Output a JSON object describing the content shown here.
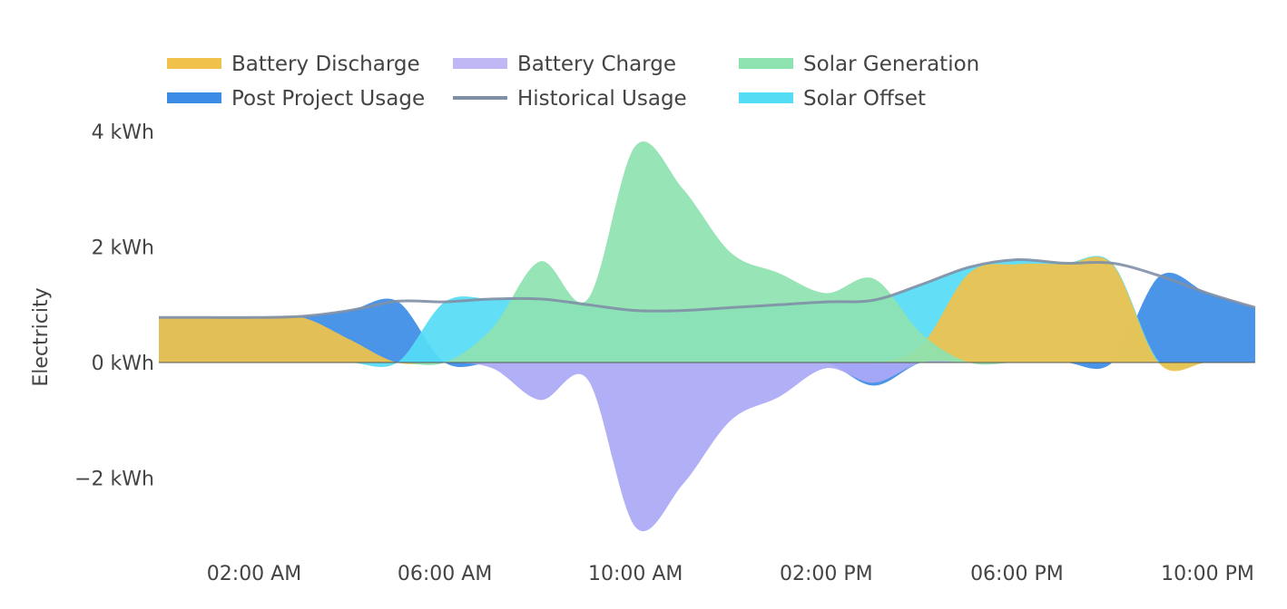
{
  "chart_data": {
    "type": "area",
    "ylabel": "Electricity",
    "x_unit": "hour of day",
    "xlim": [
      0,
      23
    ],
    "ylim": [
      -3.1,
      4.2
    ],
    "y_ticks": [
      {
        "value": 4,
        "label": "4 kWh"
      },
      {
        "value": 2,
        "label": "2 kWh"
      },
      {
        "value": 0,
        "label": "0 kWh"
      },
      {
        "value": -2,
        "label": "−2 kWh"
      }
    ],
    "x_ticks": [
      {
        "value": 2,
        "label": "02:00 AM"
      },
      {
        "value": 6,
        "label": "06:00 AM"
      },
      {
        "value": 10,
        "label": "10:00 AM"
      },
      {
        "value": 14,
        "label": "02:00 PM"
      },
      {
        "value": 18,
        "label": "06:00 PM"
      },
      {
        "value": 22,
        "label": "10:00 PM"
      }
    ],
    "x": [
      0,
      1,
      2,
      3,
      4,
      5,
      6,
      7,
      8,
      9,
      10,
      11,
      12,
      13,
      14,
      15,
      16,
      17,
      18,
      19,
      20,
      21,
      22,
      23
    ],
    "series": [
      {
        "name": "Post Project Usage",
        "color": "#3c8ce6",
        "kind": "area",
        "order": 1,
        "values": [
          0.78,
          0.78,
          0.78,
          0.8,
          0.9,
          1.06,
          0.0,
          0.0,
          0.0,
          0.0,
          0.0,
          0.0,
          0.0,
          0.0,
          0.0,
          -0.4,
          0.0,
          0.0,
          0.0,
          0.0,
          0.0,
          1.5,
          1.2,
          0.95
        ]
      },
      {
        "name": "Solar Offset",
        "color": "#55dcf5",
        "kind": "area",
        "order": 2,
        "values": [
          0.0,
          0.0,
          0.0,
          0.0,
          0.0,
          0.0,
          1.05,
          1.1,
          1.1,
          1.0,
          0.9,
          0.9,
          0.95,
          1.0,
          1.05,
          1.08,
          1.35,
          1.65,
          1.78,
          1.72,
          1.72,
          0.0,
          0.0,
          0.0
        ]
      },
      {
        "name": "Battery Discharge",
        "color": "#f0c24b",
        "kind": "area",
        "order": 3,
        "values": [
          0.78,
          0.78,
          0.78,
          0.78,
          0.4,
          0.0,
          0.0,
          0.0,
          0.0,
          0.0,
          0.0,
          0.0,
          0.0,
          0.0,
          0.0,
          0.0,
          0.3,
          1.55,
          1.7,
          1.7,
          1.7,
          -0.03,
          0.0,
          0.0
        ]
      },
      {
        "name": "Solar Generation",
        "color": "#8ee2b0",
        "kind": "area",
        "order": 4,
        "values": [
          0.0,
          0.0,
          0.0,
          0.0,
          0.0,
          0.0,
          0.0,
          0.6,
          1.75,
          1.1,
          3.75,
          3.0,
          1.9,
          1.55,
          1.2,
          1.45,
          0.5,
          0.0,
          0.0,
          0.0,
          0.0,
          0.0,
          0.0,
          0.0
        ]
      },
      {
        "name": "Battery Charge",
        "color": "#aaa8f5",
        "kind": "area",
        "order": 5,
        "values": [
          0.0,
          0.0,
          0.0,
          0.0,
          0.0,
          0.0,
          0.0,
          -0.1,
          -0.65,
          -0.3,
          -2.85,
          -2.1,
          -1.0,
          -0.6,
          -0.1,
          -0.35,
          0.0,
          0.0,
          0.0,
          0.0,
          0.0,
          0.0,
          0.0,
          0.0
        ]
      },
      {
        "name": "Historical Usage",
        "color": "#7f8fa6",
        "kind": "line",
        "order": 6,
        "values": [
          0.78,
          0.78,
          0.78,
          0.8,
          0.9,
          1.06,
          1.05,
          1.1,
          1.1,
          1.0,
          0.9,
          0.9,
          0.95,
          1.0,
          1.05,
          1.08,
          1.35,
          1.65,
          1.78,
          1.72,
          1.72,
          1.5,
          1.2,
          0.95
        ]
      }
    ],
    "legend": {
      "position": "top-left",
      "items": [
        {
          "label": "Battery Discharge",
          "color": "#f0c24b",
          "kind": "area"
        },
        {
          "label": "Battery Charge",
          "color": "#c0b8f5",
          "kind": "area"
        },
        {
          "label": "Solar Generation",
          "color": "#8ee2b0",
          "kind": "area"
        },
        {
          "label": "Post Project Usage",
          "color": "#3c8ce6",
          "kind": "area"
        },
        {
          "label": "Historical Usage",
          "color": "#7f8fa6",
          "kind": "line"
        },
        {
          "label": "Solar Offset",
          "color": "#55dcf5",
          "kind": "area"
        }
      ]
    },
    "grid": false
  }
}
